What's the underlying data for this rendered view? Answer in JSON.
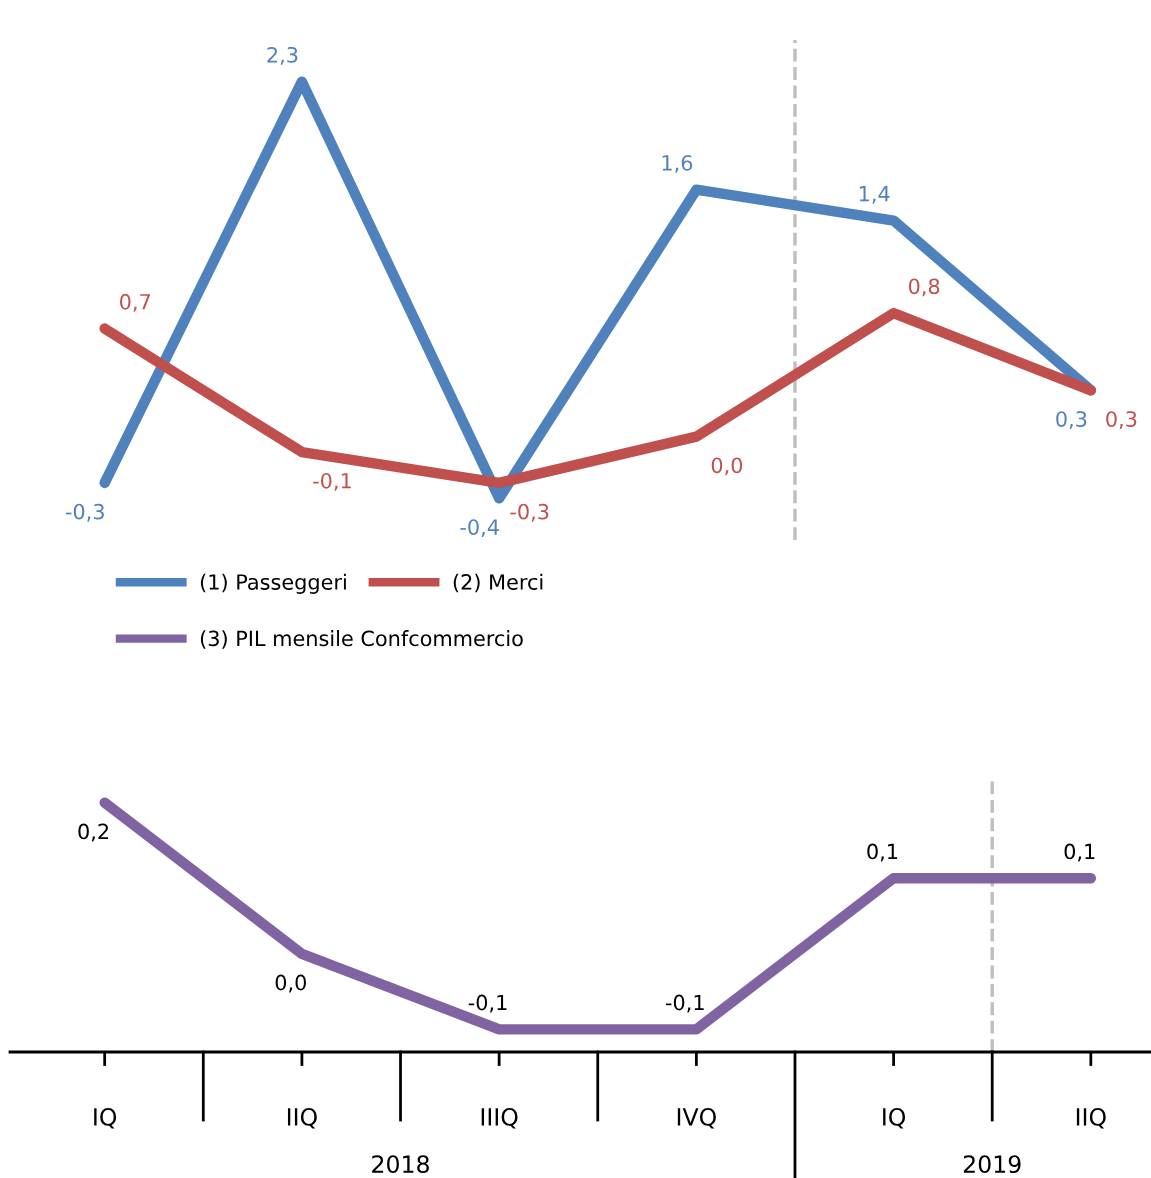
{
  "chart_data": [
    {
      "type": "line",
      "categories": [
        null,
        null,
        null,
        null,
        null,
        null
      ],
      "tick_labels": false,
      "legend": "bottom",
      "grid": false,
      "marker": "none",
      "line_style": "solid",
      "series": [
        {
          "name": "(1) Passeggeri",
          "color": "#4f81bd",
          "values": [
            -0.3,
            2.3,
            -0.4,
            1.6,
            1.4,
            0.3
          ],
          "value_labels": [
            "-0,3",
            "2,3",
            "-0,4",
            "1,6",
            "1,4",
            "0,3"
          ]
        },
        {
          "name": "(2) Merci",
          "color": "#c0504d",
          "values": [
            0.7,
            -0.1,
            -0.3,
            0.0,
            0.8,
            0.3
          ],
          "value_labels": [
            "0,7",
            "-0,1",
            "-0,3",
            "0,0",
            "0,8",
            "0,3"
          ]
        }
      ]
    },
    {
      "type": "line",
      "categories": [
        "IQ",
        "IIQ",
        "IIIQ",
        "IVQ",
        "IQ",
        "IIQ"
      ],
      "tick_labels": "x",
      "legend": "top left",
      "grid": false,
      "marker": "none",
      "line_style": "solid",
      "series": [
        {
          "name": "(3) PIL mensile Confcommercio",
          "color": "#8064a2",
          "values": [
            0.2,
            0.0,
            -0.1,
            -0.1,
            0.1,
            0.1
          ],
          "value_labels": [
            "0,2",
            "0,0",
            "-0,1",
            "-0,1",
            "0,1",
            "0,1"
          ]
        }
      ],
      "annotations": [
        "2018",
        "2019"
      ]
    }
  ]
}
